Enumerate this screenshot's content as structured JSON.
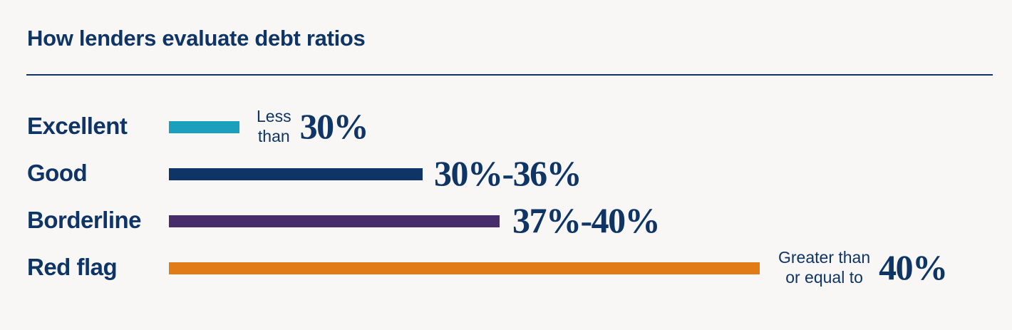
{
  "title": "How lenders evaluate debt ratios",
  "colors": {
    "background": "#f9f7f6",
    "text": "#0e3566",
    "excellent": "#1a9fbd",
    "good": "#0e3566",
    "borderline": "#472e6b",
    "red_flag": "#e07b16"
  },
  "chart_data": {
    "type": "bar",
    "orientation": "horizontal",
    "title": "How lenders evaluate debt ratios",
    "categories": [
      "Excellent",
      "Good",
      "Borderline",
      "Red flag"
    ],
    "values": [
      12,
      43,
      56,
      100
    ],
    "value_scale": "relative bar length (Red flag = 100)",
    "rows": [
      {
        "label": "Excellent",
        "qualifier": [
          "Less",
          "than"
        ],
        "range": "30%",
        "color": "#1a9fbd",
        "relative_length": 12
      },
      {
        "label": "Good",
        "qualifier": [],
        "range": "30%-36%",
        "color": "#0e3566",
        "relative_length": 43
      },
      {
        "label": "Borderline",
        "qualifier": [],
        "range": "37%-40%",
        "color": "#472e6b",
        "relative_length": 56
      },
      {
        "label": "Red flag",
        "qualifier": [
          "Greater than",
          "or equal to"
        ],
        "range": "40%",
        "color": "#e07b16",
        "relative_length": 100
      }
    ],
    "grid": false,
    "legend": "none"
  }
}
